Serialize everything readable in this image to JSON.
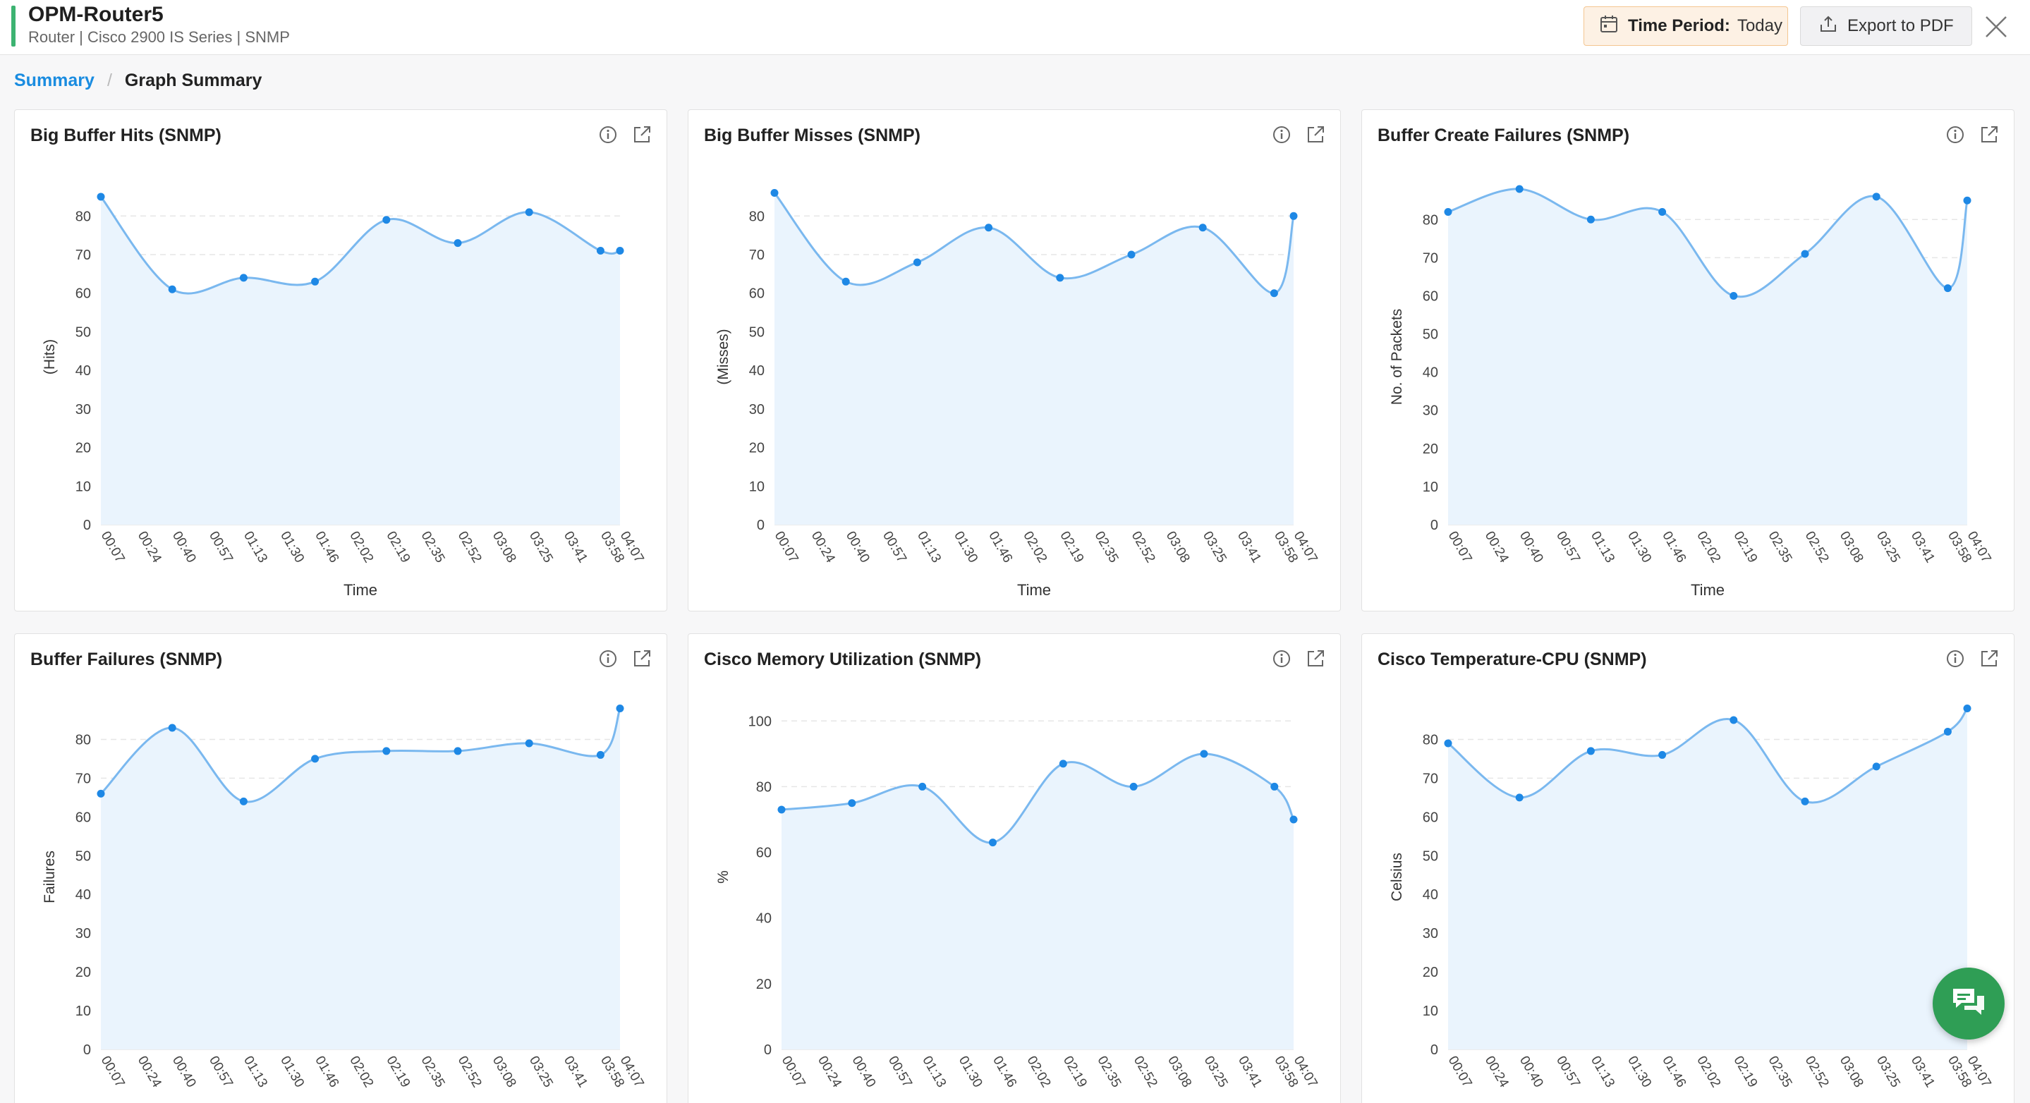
{
  "header": {
    "device_name": "OPM-Router5",
    "device_meta": "Router | Cisco 2900 IS Series  | SNMP",
    "time_period_label": "Time Period:",
    "time_period_value": "Today",
    "export_label": "Export to PDF",
    "accent_color": "#3cb371"
  },
  "breadcrumb": {
    "root": "Summary",
    "separator": "/",
    "current": "Graph Summary"
  },
  "icons": {
    "calendar": "calendar-icon",
    "export": "upload-icon",
    "close": "close-icon",
    "info": "info-icon",
    "popout": "external-link-icon",
    "chat": "chat-icon"
  },
  "colors": {
    "series_line": "#7ab8ef",
    "series_point": "#1e88e5",
    "series_fill": "#eaf4fd",
    "link": "#1a8ce0",
    "chat_fab": "#2f9e55"
  },
  "time_labels": [
    "00:07",
    "00:24",
    "00:40",
    "00:57",
    "01:13",
    "01:30",
    "01:46",
    "02:02",
    "02:19",
    "02:35",
    "02:52",
    "03:08",
    "03:25",
    "03:41",
    "03:58",
    "04:07"
  ],
  "chart_data": [
    {
      "type": "area",
      "title": "Big Buffer Hits (SNMP)",
      "xlabel": "Time",
      "ylabel": "(Hits)",
      "ylim": [
        0,
        87
      ],
      "yticks": [
        0,
        10,
        20,
        30,
        40,
        50,
        60,
        70,
        80
      ],
      "grid": true,
      "x": [
        "00:07",
        "00:40",
        "01:13",
        "01:46",
        "02:19",
        "02:52",
        "03:25",
        "03:58",
        "04:07"
      ],
      "series": [
        {
          "values": [
            85,
            61,
            64,
            63,
            79,
            73,
            81,
            71,
            71
          ]
        }
      ]
    },
    {
      "type": "area",
      "title": "Big Buffer Misses (SNMP)",
      "xlabel": "Time",
      "ylabel": "(Misses)",
      "ylim": [
        0,
        87
      ],
      "yticks": [
        0,
        10,
        20,
        30,
        40,
        50,
        60,
        70,
        80
      ],
      "grid": true,
      "x": [
        "00:07",
        "00:40",
        "01:13",
        "01:46",
        "02:19",
        "02:52",
        "03:25",
        "03:58",
        "04:07"
      ],
      "series": [
        {
          "values": [
            86,
            63,
            68,
            77,
            64,
            70,
            77,
            60,
            80
          ]
        }
      ]
    },
    {
      "type": "area",
      "title": "Buffer Create Failures (SNMP)",
      "xlabel": "Time",
      "ylabel": "No. of Packets",
      "ylim": [
        0,
        88
      ],
      "yticks": [
        0,
        10,
        20,
        30,
        40,
        50,
        60,
        70,
        80
      ],
      "grid": true,
      "x": [
        "00:07",
        "00:40",
        "01:13",
        "01:46",
        "02:19",
        "02:52",
        "03:25",
        "03:58",
        "04:07"
      ],
      "series": [
        {
          "values": [
            82,
            88,
            80,
            82,
            60,
            71,
            86,
            62,
            85
          ]
        }
      ]
    },
    {
      "type": "area",
      "title": "Buffer Failures (SNMP)",
      "xlabel": "",
      "ylabel": "Failures",
      "ylim": [
        0,
        89
      ],
      "yticks": [
        0,
        10,
        20,
        30,
        40,
        50,
        60,
        70,
        80
      ],
      "grid": true,
      "x": [
        "00:07",
        "00:40",
        "01:13",
        "01:46",
        "02:19",
        "02:52",
        "03:25",
        "03:58",
        "04:07"
      ],
      "series": [
        {
          "values": [
            66,
            83,
            64,
            75,
            77,
            77,
            79,
            76,
            88
          ]
        }
      ]
    },
    {
      "type": "area",
      "title": "Cisco Memory Utilization (SNMP)",
      "xlabel": "",
      "ylabel": "%",
      "ylim": [
        0,
        105
      ],
      "yticks": [
        0,
        20,
        40,
        60,
        80,
        100
      ],
      "grid": true,
      "x": [
        "00:07",
        "00:40",
        "01:13",
        "01:46",
        "02:19",
        "02:52",
        "03:25",
        "03:58",
        "04:07"
      ],
      "series": [
        {
          "values": [
            73,
            75,
            80,
            63,
            87,
            80,
            90,
            80,
            70
          ]
        }
      ]
    },
    {
      "type": "area",
      "title": "Cisco Temperature-CPU (SNMP)",
      "xlabel": "",
      "ylabel": "Celsius",
      "ylim": [
        0,
        89
      ],
      "yticks": [
        0,
        10,
        20,
        30,
        40,
        50,
        60,
        70,
        80
      ],
      "grid": true,
      "x": [
        "00:07",
        "00:40",
        "01:13",
        "01:46",
        "02:19",
        "02:52",
        "03:25",
        "03:58",
        "04:07"
      ],
      "series": [
        {
          "values": [
            79,
            65,
            77,
            76,
            85,
            64,
            73,
            82,
            88
          ]
        }
      ]
    }
  ]
}
